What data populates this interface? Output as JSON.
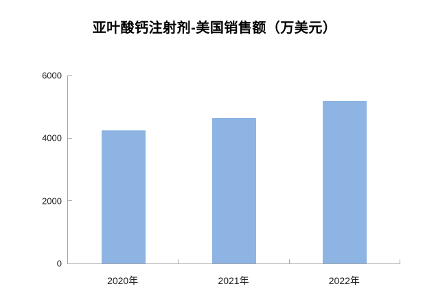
{
  "title": "亚叶酸钙注射剂-美国销售额（万美元）",
  "colors": {
    "bar_fill": "#8EB4E3",
    "axis": "#A3A3A3",
    "tick_text": "#1A1A1A",
    "title_text": "#000000",
    "background": "#FFFFFF"
  },
  "chart_data": {
    "type": "bar",
    "title": "亚叶酸钙注射剂-美国销售额（万美元）",
    "categories": [
      "2020年",
      "2021年",
      "2022年"
    ],
    "values": [
      4250,
      4640,
      5180
    ],
    "xlabel": "",
    "ylabel": "",
    "ylim": [
      0,
      6000
    ],
    "yticks": [
      0,
      2000,
      4000,
      6000
    ],
    "grid": false,
    "legend": false,
    "bar_color": "#8EB4E3"
  }
}
